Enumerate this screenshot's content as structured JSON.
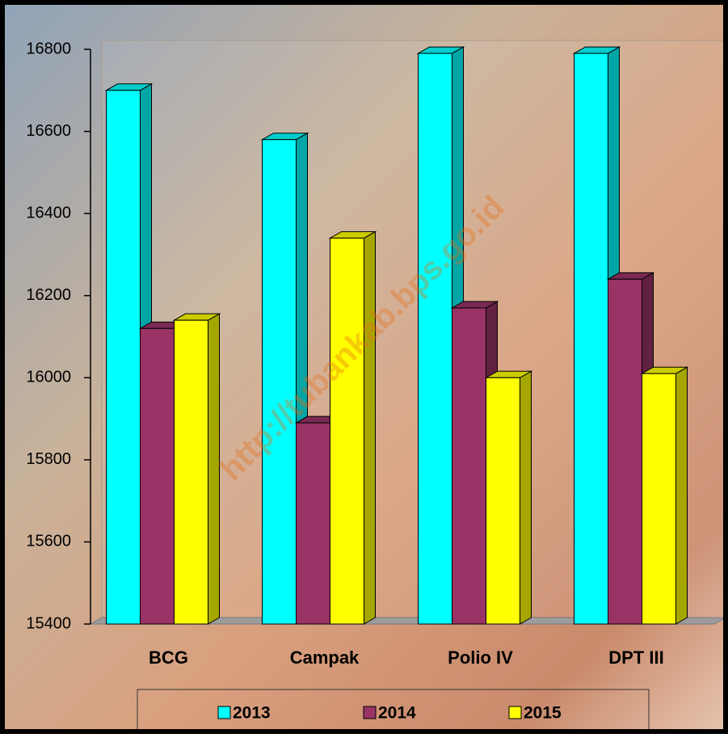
{
  "chart_data": {
    "type": "bar3d",
    "categories": [
      "BCG",
      "Campak",
      "Polio IV",
      "DPT III"
    ],
    "series": [
      {
        "name": "2013",
        "color": "#00ffff",
        "values": [
          16700,
          16580,
          16790,
          16790
        ]
      },
      {
        "name": "2014",
        "color": "#993366",
        "values": [
          16120,
          15890,
          16170,
          16240
        ]
      },
      {
        "name": "2015",
        "color": "#ffff00",
        "values": [
          16140,
          16340,
          16000,
          16010
        ]
      }
    ],
    "ylim": [
      15400,
      16800
    ],
    "yticks": [
      15400,
      15600,
      15800,
      16000,
      16200,
      16400,
      16600,
      16800
    ],
    "legend": "bottom",
    "watermark": "http://tubankab.bps.go.id"
  }
}
